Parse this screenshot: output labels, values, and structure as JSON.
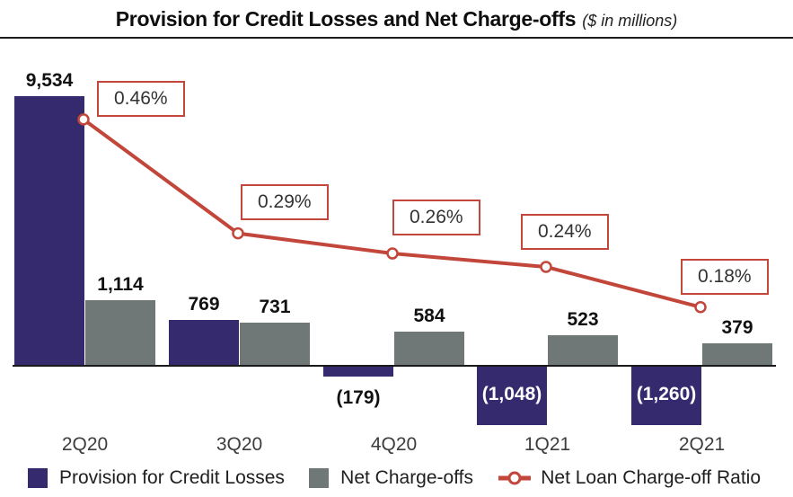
{
  "title": {
    "main": "Provision for Credit Losses and Net Charge-offs",
    "unit_note": "($ in millions)"
  },
  "colors": {
    "provision_bar": "#362a6e",
    "charge_off_bar": "#6f7877",
    "ratio_line": "#c2463a",
    "axis_line": "#1a1a1a",
    "marker_fill": "#ffffff"
  },
  "chart_data": {
    "type": "bar+line combo",
    "title": "Provision for Credit Losses and Net Charge-offs",
    "subtitle": "($ in millions)",
    "categories": [
      "2Q20",
      "3Q20",
      "4Q20",
      "1Q21",
      "2Q21"
    ],
    "series": [
      {
        "name": "Provision for Credit Losses",
        "type": "bar",
        "unit": "$ millions",
        "values": [
          9534,
          769,
          -179,
          -1048,
          -1260
        ],
        "labels": [
          "9,534",
          "769",
          "(179)",
          "(1,048)",
          "(1,260)"
        ]
      },
      {
        "name": "Net Charge-offs",
        "type": "bar",
        "unit": "$ millions",
        "values": [
          1114,
          731,
          584,
          523,
          379
        ],
        "labels": [
          "1,114",
          "731",
          "584",
          "523",
          "379"
        ]
      },
      {
        "name": "Net Loan Charge-off Ratio",
        "type": "line",
        "unit": "%",
        "values": [
          0.46,
          0.29,
          0.26,
          0.24,
          0.18
        ],
        "labels": [
          "0.46%",
          "0.29%",
          "0.26%",
          "0.24%",
          "0.18%"
        ]
      }
    ],
    "baseline_value": 0,
    "y_axis_visible": false,
    "grid": false,
    "legend_position": "bottom",
    "notes": "tallest bar visually truncated at plot top; data labels shown on every point"
  },
  "legend": [
    {
      "label": "Provision for Credit Losses"
    },
    {
      "label": "Net Charge-offs"
    },
    {
      "label": "Net Loan Charge-off Ratio"
    }
  ]
}
